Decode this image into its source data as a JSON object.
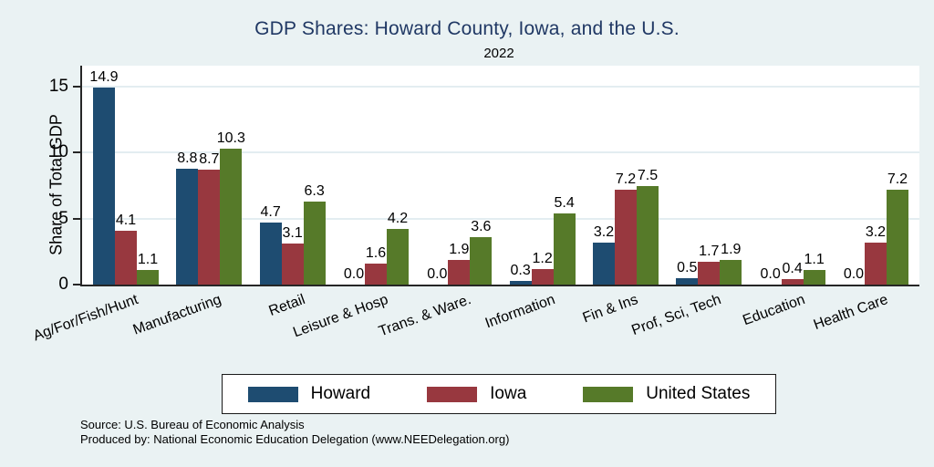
{
  "chart_data": {
    "type": "bar",
    "title": "GDP Shares: Howard County, Iowa, and the U.S.",
    "subtitle": "2022",
    "ylabel": "Share of Total GDP",
    "xlabel": "",
    "ylim": [
      0,
      15
    ],
    "yticks": [
      0,
      5,
      10,
      15
    ],
    "grid": true,
    "legend_position": "bottom",
    "categories": [
      "Ag/For/Fish/Hunt",
      "Manufacturing",
      "Retail",
      "Leisure & Hosp",
      "Trans. & Ware.",
      "Information",
      "Fin & Ins",
      "Prof, Sci, Tech",
      "Education",
      "Health Care"
    ],
    "series": [
      {
        "name": "Howard",
        "color": "#1e4c71",
        "values": [
          14.9,
          8.8,
          4.7,
          0.0,
          0.0,
          0.3,
          3.2,
          0.5,
          0.0,
          0.0
        ]
      },
      {
        "name": "Iowa",
        "color": "#98383f",
        "values": [
          4.1,
          8.7,
          3.1,
          1.6,
          1.9,
          1.2,
          7.2,
          1.7,
          0.4,
          3.2
        ]
      },
      {
        "name": "United States",
        "color": "#567a29",
        "values": [
          1.1,
          10.3,
          6.3,
          4.2,
          3.6,
          5.4,
          7.5,
          1.9,
          1.1,
          7.2
        ]
      }
    ],
    "colors": {
      "background": "#eaf2f3",
      "plot_background": "#ffffff",
      "gridline": "#e3edf1",
      "axis_line": "#262626",
      "title_text": "#203864",
      "value_label_text": "#000000"
    }
  },
  "footer": {
    "line1": "Source: U.S. Bureau of Economic Analysis",
    "line2": "Produced by: National Economic Education Delegation (www.NEEDelegation.org)"
  }
}
